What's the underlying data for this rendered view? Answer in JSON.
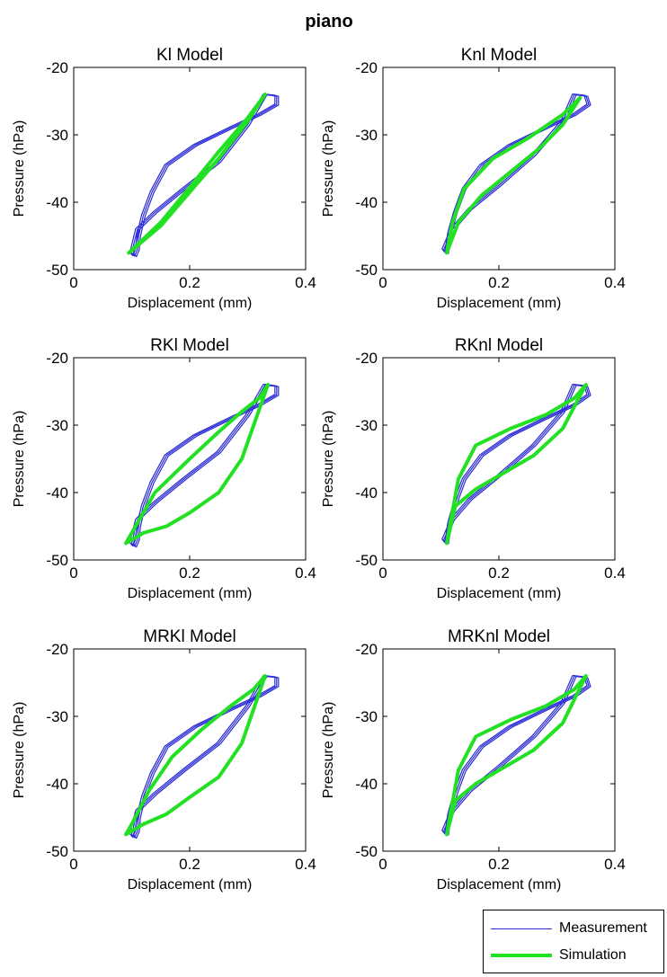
{
  "figure": {
    "title": "piano"
  },
  "colors": {
    "measurement": "#2a2ad6",
    "simulation": "#22e022"
  },
  "legend": {
    "entries": [
      {
        "label": "Measurement"
      },
      {
        "label": "Simulation"
      }
    ]
  },
  "chart_data": [
    {
      "type": "line",
      "title": "Kl Model",
      "xlabel": "Displacement (mm)",
      "ylabel": "Pressure (hPa)",
      "xlim": [
        0,
        0.4
      ],
      "ylim": [
        -50,
        -20
      ],
      "xticks": [
        0,
        0.2,
        0.4
      ],
      "xtick_labels": [
        "0",
        "0.2",
        "0.4"
      ],
      "yticks": [
        -20,
        -30,
        -40,
        -50
      ],
      "ytick_labels": [
        "-20",
        "-30",
        "-40",
        "-50"
      ],
      "series": [
        {
          "role": "measurement",
          "x": [
            0.33,
            0.35,
            0.35,
            0.32,
            0.27,
            0.21,
            0.16,
            0.135,
            0.12,
            0.112,
            0.11,
            0.105,
            0.1,
            0.11,
            0.14,
            0.19,
            0.25,
            0.3,
            0.33
          ],
          "y": [
            -24,
            -24.2,
            -25.5,
            -27,
            -29,
            -31.5,
            -34.5,
            -38.5,
            -42,
            -45,
            -47,
            -48,
            -47.5,
            -44,
            -41.5,
            -38,
            -34,
            -28.5,
            -24
          ]
        },
        {
          "role": "simulation",
          "x": [
            0.095,
            0.15,
            0.2,
            0.25,
            0.3,
            0.33,
            0.3,
            0.25,
            0.2,
            0.15,
            0.095
          ],
          "y": [
            -47.5,
            -43.5,
            -38.5,
            -33.5,
            -28,
            -24,
            -27.5,
            -32.5,
            -37.8,
            -43,
            -47.5
          ]
        }
      ]
    },
    {
      "type": "line",
      "title": "Knl Model",
      "xlabel": "Displacement (mm)",
      "ylabel": "Pressure (hPa)",
      "xlim": [
        0,
        0.4
      ],
      "ylim": [
        -50,
        -20
      ],
      "xticks": [
        0,
        0.2,
        0.4
      ],
      "xtick_labels": [
        "0",
        "0.2",
        "0.4"
      ],
      "yticks": [
        -20,
        -30,
        -40,
        -50
      ],
      "ytick_labels": [
        "-20",
        "-30",
        "-40",
        "-50"
      ],
      "series": [
        {
          "role": "measurement",
          "x": [
            0.33,
            0.35,
            0.355,
            0.33,
            0.28,
            0.22,
            0.17,
            0.14,
            0.125,
            0.115,
            0.11,
            0.105,
            0.12,
            0.15,
            0.2,
            0.26,
            0.31,
            0.33
          ],
          "y": [
            -24,
            -24.2,
            -25.5,
            -27,
            -29,
            -31.5,
            -34.5,
            -38,
            -41.5,
            -44.5,
            -47.5,
            -47,
            -44,
            -41,
            -37.5,
            -33,
            -28,
            -24
          ]
        },
        {
          "role": "simulation",
          "x": [
            0.11,
            0.13,
            0.17,
            0.22,
            0.27,
            0.31,
            0.34,
            0.31,
            0.25,
            0.19,
            0.14,
            0.12,
            0.11
          ],
          "y": [
            -47.5,
            -43,
            -39,
            -35.5,
            -32,
            -28.5,
            -24.5,
            -27,
            -30.5,
            -33.5,
            -38,
            -43,
            -47.5
          ]
        }
      ]
    },
    {
      "type": "line",
      "title": "RKl Model",
      "xlabel": "Displacement (mm)",
      "ylabel": "Pressure (hPa)",
      "xlim": [
        0,
        0.4
      ],
      "ylim": [
        -50,
        -20
      ],
      "xticks": [
        0,
        0.2,
        0.4
      ],
      "xtick_labels": [
        "0",
        "0.2",
        "0.4"
      ],
      "yticks": [
        -20,
        -30,
        -40,
        -50
      ],
      "ytick_labels": [
        "-20",
        "-30",
        "-40",
        "-50"
      ],
      "series": [
        {
          "role": "measurement",
          "x": [
            0.33,
            0.35,
            0.35,
            0.32,
            0.27,
            0.21,
            0.16,
            0.135,
            0.12,
            0.112,
            0.11,
            0.105,
            0.1,
            0.11,
            0.14,
            0.19,
            0.25,
            0.3,
            0.33
          ],
          "y": [
            -24,
            -24.2,
            -25.5,
            -27,
            -29,
            -31.5,
            -34.5,
            -38.5,
            -42,
            -45,
            -47,
            -48,
            -47.5,
            -44,
            -41.5,
            -38,
            -34,
            -28.5,
            -24
          ]
        },
        {
          "role": "simulation",
          "x": [
            0.09,
            0.12,
            0.16,
            0.2,
            0.25,
            0.29,
            0.335,
            0.32,
            0.29,
            0.25,
            0.2,
            0.14,
            0.1,
            0.09
          ],
          "y": [
            -47.5,
            -46,
            -45,
            -43,
            -40,
            -35,
            -24,
            -26,
            -28,
            -31,
            -35,
            -40,
            -46,
            -47.5
          ]
        }
      ]
    },
    {
      "type": "line",
      "title": "RKnl Model",
      "xlabel": "Displacement (mm)",
      "ylabel": "Pressure (hPa)",
      "xlim": [
        0,
        0.4
      ],
      "ylim": [
        -50,
        -20
      ],
      "xticks": [
        0,
        0.2,
        0.4
      ],
      "xtick_labels": [
        "0",
        "0.2",
        "0.4"
      ],
      "yticks": [
        -20,
        -30,
        -40,
        -50
      ],
      "ytick_labels": [
        "-20",
        "-30",
        "-40",
        "-50"
      ],
      "series": [
        {
          "role": "measurement",
          "x": [
            0.33,
            0.35,
            0.355,
            0.33,
            0.28,
            0.22,
            0.17,
            0.14,
            0.125,
            0.115,
            0.11,
            0.105,
            0.12,
            0.15,
            0.2,
            0.26,
            0.31,
            0.33
          ],
          "y": [
            -24,
            -24.2,
            -25.5,
            -27,
            -29,
            -31.5,
            -34.5,
            -38,
            -41.5,
            -44.5,
            -47.5,
            -47,
            -44,
            -41,
            -37.5,
            -33,
            -28,
            -24
          ]
        },
        {
          "role": "simulation",
          "x": [
            0.11,
            0.125,
            0.16,
            0.21,
            0.26,
            0.31,
            0.35,
            0.33,
            0.28,
            0.22,
            0.16,
            0.13,
            0.11
          ],
          "y": [
            -47.5,
            -42,
            -39.5,
            -37,
            -34.5,
            -30.5,
            -24,
            -26,
            -28.5,
            -30.5,
            -33,
            -38,
            -47.5
          ]
        }
      ]
    },
    {
      "type": "line",
      "title": "MRKl Model",
      "xlabel": "Displacement (mm)",
      "ylabel": "Pressure (hPa)",
      "xlim": [
        0,
        0.4
      ],
      "ylim": [
        -50,
        -20
      ],
      "xticks": [
        0,
        0.2,
        0.4
      ],
      "xtick_labels": [
        "0",
        "0.2",
        "0.4"
      ],
      "yticks": [
        -20,
        -30,
        -40,
        -50
      ],
      "ytick_labels": [
        "-20",
        "-30",
        "-40",
        "-50"
      ],
      "series": [
        {
          "role": "measurement",
          "x": [
            0.33,
            0.35,
            0.35,
            0.32,
            0.27,
            0.21,
            0.16,
            0.135,
            0.12,
            0.112,
            0.11,
            0.105,
            0.1,
            0.11,
            0.14,
            0.19,
            0.25,
            0.3,
            0.33
          ],
          "y": [
            -24,
            -24.2,
            -25.5,
            -27,
            -29,
            -31.5,
            -34.5,
            -38.5,
            -42,
            -45,
            -47,
            -48,
            -47.5,
            -44,
            -41.5,
            -38,
            -34,
            -28.5,
            -24
          ]
        },
        {
          "role": "simulation",
          "x": [
            0.09,
            0.12,
            0.16,
            0.2,
            0.25,
            0.29,
            0.33,
            0.31,
            0.27,
            0.22,
            0.17,
            0.13,
            0.1,
            0.09
          ],
          "y": [
            -47.5,
            -46,
            -44.5,
            -42,
            -39,
            -34,
            -24,
            -26,
            -28.5,
            -32,
            -36,
            -41,
            -46,
            -47.5
          ]
        }
      ]
    },
    {
      "type": "line",
      "title": "MRKnl Model",
      "xlabel": "Displacement (mm)",
      "ylabel": "Pressure (hPa)",
      "xlim": [
        0,
        0.4
      ],
      "ylim": [
        -50,
        -20
      ],
      "xticks": [
        0,
        0.2,
        0.4
      ],
      "xtick_labels": [
        "0",
        "0.2",
        "0.4"
      ],
      "yticks": [
        -20,
        -30,
        -40,
        -50
      ],
      "ytick_labels": [
        "-20",
        "-30",
        "-40",
        "-50"
      ],
      "series": [
        {
          "role": "measurement",
          "x": [
            0.33,
            0.35,
            0.355,
            0.33,
            0.28,
            0.22,
            0.17,
            0.14,
            0.125,
            0.115,
            0.11,
            0.105,
            0.12,
            0.15,
            0.2,
            0.26,
            0.31,
            0.33
          ],
          "y": [
            -24,
            -24.2,
            -25.5,
            -27,
            -29,
            -31.5,
            -34.5,
            -38,
            -41.5,
            -44.5,
            -47.5,
            -47,
            -44,
            -41,
            -37.5,
            -33,
            -28,
            -24
          ]
        },
        {
          "role": "simulation",
          "x": [
            0.11,
            0.125,
            0.16,
            0.21,
            0.26,
            0.31,
            0.35,
            0.33,
            0.28,
            0.22,
            0.16,
            0.13,
            0.11
          ],
          "y": [
            -47.5,
            -42.5,
            -40,
            -37.5,
            -35,
            -31,
            -24,
            -26,
            -28.5,
            -30.5,
            -33,
            -38,
            -47.5
          ]
        }
      ]
    }
  ]
}
